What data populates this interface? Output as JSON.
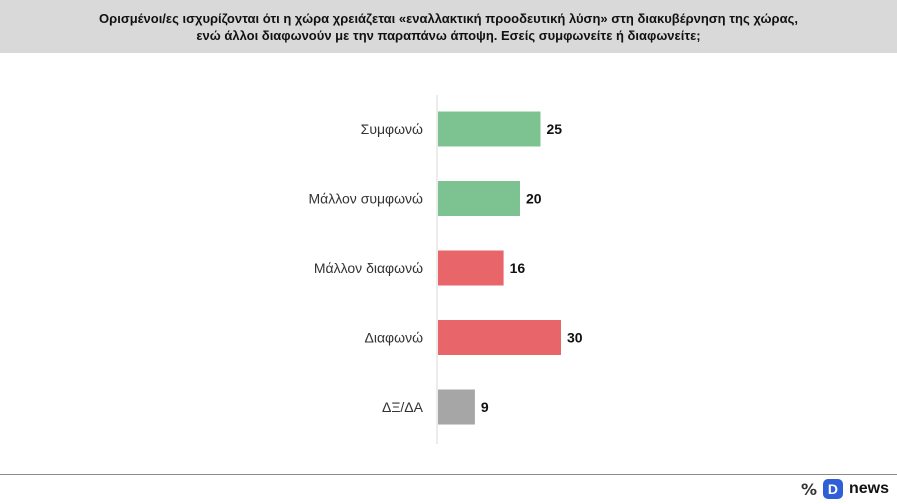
{
  "header": {
    "line1": "Ορισμένοι/ες ισχυρίζονται ότι η χώρα χρειάζεται «εναλλακτική προοδευτική λύση» στη διακυβέρνηση της χώρας,",
    "line2": "ενώ άλλοι διαφωνούν με την παραπάνω άποψη. Εσείς συμφωνείτε ή διαφωνείτε;"
  },
  "chart_data": {
    "type": "bar",
    "orientation": "horizontal",
    "categories": [
      "Συμφωνώ",
      "Μάλλον συμφωνώ",
      "Μάλλον διαφωνώ",
      "Διαφωνώ",
      "ΔΞ/ΔΑ"
    ],
    "values": [
      25,
      20,
      16,
      30,
      9
    ],
    "colors": [
      "#7dc391",
      "#7dc391",
      "#e8666a",
      "#e8666a",
      "#a6a6a6"
    ],
    "data_labels": [
      "25",
      "20",
      "16",
      "30",
      "9"
    ],
    "grid": false,
    "xlim": [
      0,
      30
    ]
  },
  "footer": {
    "percent_icon": "percent-icon",
    "logo_letter": "D",
    "brand": "news"
  }
}
